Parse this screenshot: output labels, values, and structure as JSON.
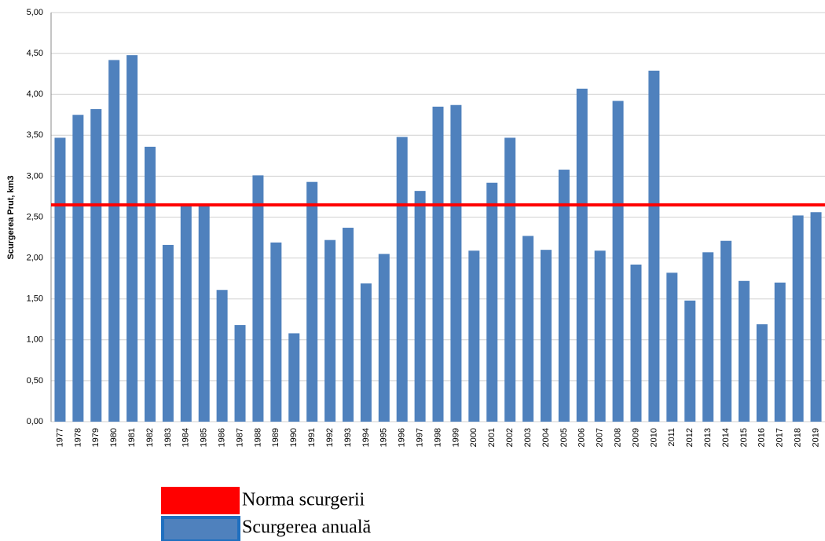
{
  "chart_data": {
    "type": "bar",
    "ylabel": "Scurgerea Prut, km3",
    "categories": [
      "1977",
      "1978",
      "1979",
      "1980",
      "1981",
      "1982",
      "1983",
      "1984",
      "1985",
      "1986",
      "1987",
      "1988",
      "1989",
      "1990",
      "1991",
      "1992",
      "1993",
      "1994",
      "1995",
      "1996",
      "1997",
      "1998",
      "1999",
      "2000",
      "2001",
      "2002",
      "2003",
      "2004",
      "2005",
      "2006",
      "2007",
      "2008",
      "2009",
      "2010",
      "2011",
      "2012",
      "2013",
      "2014",
      "2015",
      "2016",
      "2017",
      "2018",
      "2019"
    ],
    "series": [
      {
        "name": "Scurgerea anuală",
        "color": "#4f81bd",
        "values": [
          3.47,
          3.75,
          3.82,
          4.42,
          4.48,
          3.36,
          2.16,
          2.66,
          2.66,
          1.61,
          1.18,
          3.01,
          2.19,
          1.08,
          2.93,
          2.22,
          2.37,
          1.69,
          2.05,
          3.48,
          2.82,
          3.85,
          3.87,
          2.09,
          2.92,
          3.47,
          2.27,
          2.1,
          3.08,
          4.07,
          2.09,
          3.92,
          1.92,
          4.29,
          1.82,
          1.48,
          2.07,
          2.21,
          1.72,
          1.19,
          1.7,
          2.52,
          2.56
        ]
      }
    ],
    "norm": {
      "name": "Norma scurgerii",
      "color": "#ff0000",
      "value": 2.65
    },
    "ylim": [
      0,
      5
    ],
    "yticks": [
      {
        "value": 0,
        "label": "0,00"
      },
      {
        "value": 0.5,
        "label": "0,50"
      },
      {
        "value": 1,
        "label": "1,00"
      },
      {
        "value": 1.5,
        "label": "1,50"
      },
      {
        "value": 2,
        "label": "2,00"
      },
      {
        "value": 2.5,
        "label": "2,50"
      },
      {
        "value": 3,
        "label": "3,00"
      },
      {
        "value": 3.5,
        "label": "3,50"
      },
      {
        "value": 4,
        "label": "4,00"
      },
      {
        "value": 4.5,
        "label": "4,50"
      },
      {
        "value": 5,
        "label": "5,00"
      }
    ],
    "grid": true
  }
}
